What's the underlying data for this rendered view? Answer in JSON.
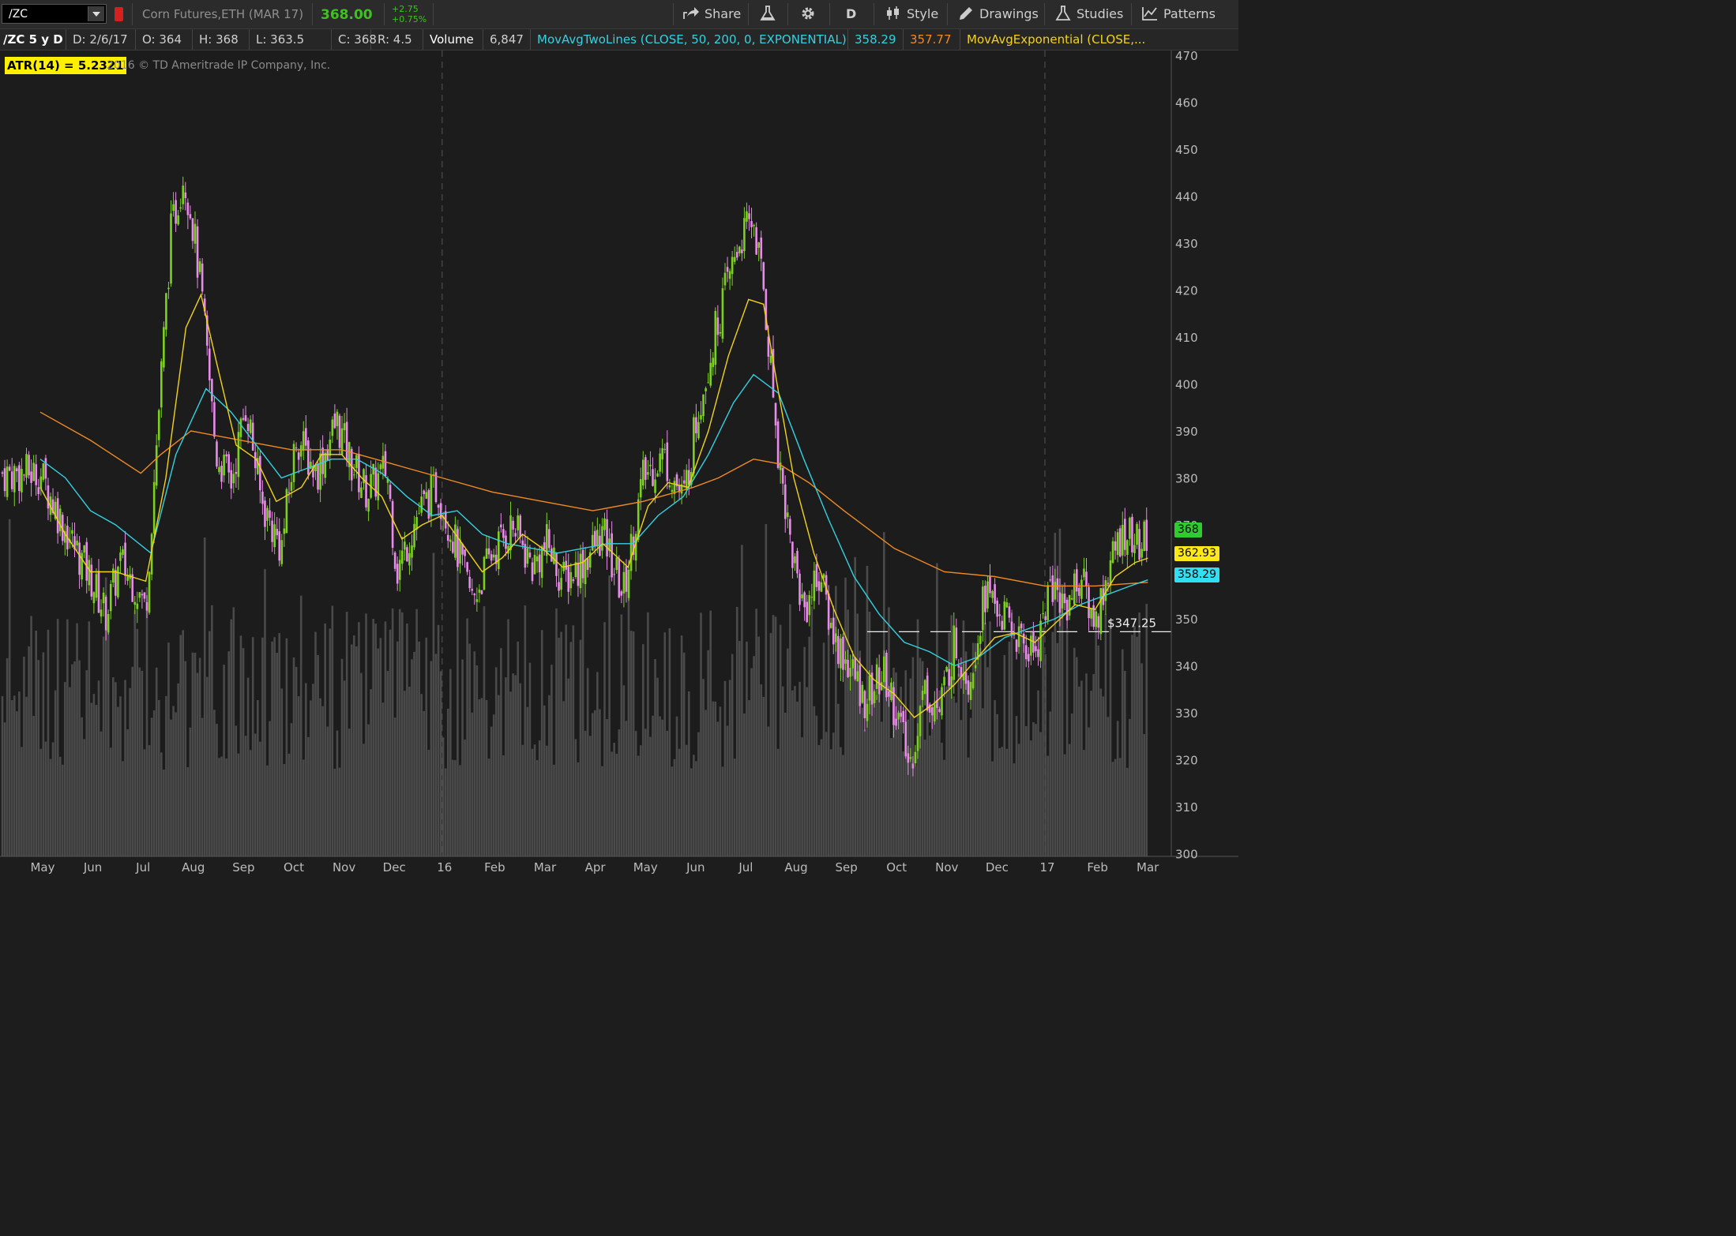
{
  "toolbar": {
    "symbol": "/ZC",
    "instrument": "Corn Futures,ETH (MAR 17)",
    "last": "368.00",
    "change": "+2.75",
    "change_pct": "+0.75%",
    "timeframe": "D",
    "buttons": {
      "share": "Share",
      "style": "Style",
      "drawings": "Drawings",
      "studies": "Studies",
      "patterns": "Patterns"
    }
  },
  "infobar": {
    "title": "/ZC 5 y D",
    "date": "D: 2/6/17",
    "open": "O: 364",
    "high": "H: 368",
    "low": "L: 363.5",
    "close": "C: 368",
    "range": "R: 4.5",
    "volume_label": "Volume",
    "volume_value": "6,847",
    "study1_label": "MovAvgTwoLines (CLOSE, 50, 200, 0, EXPONENTIAL)",
    "study1_v1": "358.29",
    "study1_v2": "357.77",
    "study2_label": "MovAvgExponential (CLOSE,..."
  },
  "overlay": {
    "atr": "ATR(14) = 5.2321",
    "copyright": "2016 © TD Ameritrade IP Company, Inc."
  },
  "colors": {
    "up": "#7cd11f",
    "down": "#e98ce9",
    "ema50": "#35d1e0",
    "ema200": "#f08a24",
    "ema_short": "#f2d31a",
    "volume": "#4a4a4a"
  },
  "chart_data": {
    "type": "candlestick",
    "ylim": [
      300,
      470
    ],
    "yticks": [
      300,
      310,
      320,
      330,
      340,
      350,
      360,
      370,
      380,
      390,
      400,
      410,
      420,
      430,
      440,
      450,
      460,
      470
    ],
    "xticks": [
      "May",
      "Jun",
      "Jul",
      "Aug",
      "Sep",
      "Oct",
      "Nov",
      "Dec",
      "16",
      "Feb",
      "Mar",
      "Apr",
      "May",
      "Jun",
      "Jul",
      "Aug",
      "Sep",
      "Oct",
      "Nov",
      "Dec",
      "17",
      "Feb",
      "Mar"
    ],
    "close_path": [
      [
        0,
        381
      ],
      [
        0.5,
        369
      ],
      [
        1,
        359
      ],
      [
        1.3,
        351
      ],
      [
        1.6,
        362
      ],
      [
        1.9,
        357
      ],
      [
        2.1,
        352
      ],
      [
        2.3,
        385
      ],
      [
        2.6,
        432
      ],
      [
        2.85,
        445
      ],
      [
        3.0,
        437
      ],
      [
        3.2,
        420
      ],
      [
        3.5,
        385
      ],
      [
        3.8,
        379
      ],
      [
        4.1,
        396
      ],
      [
        4.4,
        375
      ],
      [
        4.8,
        365
      ],
      [
        5.1,
        389
      ],
      [
        5.5,
        381
      ],
      [
        5.9,
        392
      ],
      [
        6.2,
        383
      ],
      [
        6.5,
        377
      ],
      [
        6.9,
        382
      ],
      [
        7.1,
        360
      ],
      [
        7.5,
        372
      ],
      [
        7.9,
        378
      ],
      [
        8.2,
        368
      ],
      [
        8.6,
        354
      ],
      [
        9.0,
        364
      ],
      [
        9.4,
        370
      ],
      [
        9.8,
        361
      ],
      [
        10.1,
        366
      ],
      [
        10.4,
        358
      ],
      [
        10.8,
        362
      ],
      [
        11.2,
        368
      ],
      [
        11.6,
        355
      ],
      [
        12.0,
        380
      ],
      [
        12.4,
        385
      ],
      [
        12.8,
        375
      ],
      [
        13.1,
        395
      ],
      [
        13.5,
        414
      ],
      [
        13.9,
        430
      ],
      [
        14.2,
        435
      ],
      [
        14.4,
        420
      ],
      [
        14.7,
        385
      ],
      [
        14.95,
        365
      ],
      [
        15.2,
        352
      ],
      [
        15.5,
        360
      ],
      [
        15.8,
        346
      ],
      [
        16.1,
        340
      ],
      [
        16.4,
        333
      ],
      [
        16.8,
        338
      ],
      [
        17.1,
        328
      ],
      [
        17.3,
        318
      ],
      [
        17.6,
        335
      ],
      [
        17.9,
        330
      ],
      [
        18.2,
        345
      ],
      [
        18.5,
        337
      ],
      [
        18.8,
        356
      ],
      [
        19.2,
        350
      ],
      [
        19.5,
        345
      ],
      [
        19.8,
        343
      ],
      [
        20.1,
        357
      ],
      [
        20.4,
        353
      ],
      [
        20.7,
        359
      ],
      [
        21.0,
        349
      ],
      [
        21.3,
        362
      ],
      [
        21.6,
        369
      ],
      [
        21.9,
        365
      ],
      [
        22.05,
        368
      ]
    ],
    "ema200": [
      [
        0,
        394
      ],
      [
        1,
        388
      ],
      [
        2,
        381
      ],
      [
        2.4,
        385
      ],
      [
        3,
        390
      ],
      [
        4,
        388
      ],
      [
        5,
        386
      ],
      [
        6,
        386
      ],
      [
        7,
        383
      ],
      [
        8,
        380
      ],
      [
        9,
        377
      ],
      [
        10,
        375
      ],
      [
        11,
        373
      ],
      [
        12,
        375
      ],
      [
        13,
        378
      ],
      [
        13.5,
        380
      ],
      [
        14.2,
        384
      ],
      [
        14.7,
        383
      ],
      [
        15.3,
        379
      ],
      [
        16,
        373
      ],
      [
        17,
        365
      ],
      [
        18,
        360
      ],
      [
        19,
        359
      ],
      [
        20,
        357
      ],
      [
        21,
        357
      ],
      [
        22.05,
        357.77
      ]
    ],
    "ema50": [
      [
        0,
        384
      ],
      [
        0.5,
        380
      ],
      [
        1,
        373
      ],
      [
        1.5,
        370
      ],
      [
        2.2,
        364
      ],
      [
        2.7,
        385
      ],
      [
        3.3,
        399
      ],
      [
        3.8,
        394
      ],
      [
        4.3,
        387
      ],
      [
        4.8,
        380
      ],
      [
        5.3,
        382
      ],
      [
        5.8,
        384
      ],
      [
        6.3,
        384
      ],
      [
        6.8,
        381
      ],
      [
        7.3,
        376
      ],
      [
        7.8,
        372
      ],
      [
        8.3,
        373
      ],
      [
        8.8,
        368
      ],
      [
        9.3,
        366
      ],
      [
        9.8,
        365
      ],
      [
        10.3,
        364
      ],
      [
        10.8,
        365
      ],
      [
        11.3,
        366
      ],
      [
        11.8,
        366
      ],
      [
        12.3,
        372
      ],
      [
        12.8,
        376
      ],
      [
        13.3,
        385
      ],
      [
        13.8,
        396
      ],
      [
        14.2,
        402
      ],
      [
        14.7,
        398
      ],
      [
        15.2,
        384
      ],
      [
        15.7,
        371
      ],
      [
        16.2,
        359
      ],
      [
        16.7,
        351
      ],
      [
        17.2,
        345
      ],
      [
        17.7,
        343
      ],
      [
        18.2,
        340
      ],
      [
        18.7,
        342
      ],
      [
        19.2,
        346
      ],
      [
        19.7,
        348
      ],
      [
        20.2,
        350
      ],
      [
        20.7,
        353
      ],
      [
        21.2,
        355
      ],
      [
        21.7,
        357
      ],
      [
        22.05,
        358.29
      ]
    ],
    "ema_short": [
      [
        0,
        378
      ],
      [
        0.5,
        368
      ],
      [
        1,
        360
      ],
      [
        1.5,
        360
      ],
      [
        2.1,
        358
      ],
      [
        2.5,
        380
      ],
      [
        2.9,
        412
      ],
      [
        3.2,
        419
      ],
      [
        3.5,
        405
      ],
      [
        3.9,
        387
      ],
      [
        4.3,
        384
      ],
      [
        4.7,
        375
      ],
      [
        5.2,
        378
      ],
      [
        5.6,
        385
      ],
      [
        6.0,
        385
      ],
      [
        6.4,
        380
      ],
      [
        6.8,
        376
      ],
      [
        7.2,
        367
      ],
      [
        7.6,
        370
      ],
      [
        8.0,
        372
      ],
      [
        8.4,
        366
      ],
      [
        8.8,
        360
      ],
      [
        9.2,
        363
      ],
      [
        9.6,
        368
      ],
      [
        10.0,
        365
      ],
      [
        10.4,
        361
      ],
      [
        10.8,
        362
      ],
      [
        11.2,
        366
      ],
      [
        11.7,
        361
      ],
      [
        12.1,
        374
      ],
      [
        12.5,
        379
      ],
      [
        12.9,
        378
      ],
      [
        13.3,
        390
      ],
      [
        13.7,
        406
      ],
      [
        14.1,
        418
      ],
      [
        14.4,
        417
      ],
      [
        14.7,
        398
      ],
      [
        15.0,
        380
      ],
      [
        15.4,
        364
      ],
      [
        15.8,
        352
      ],
      [
        16.2,
        342
      ],
      [
        16.6,
        337
      ],
      [
        17.0,
        334
      ],
      [
        17.4,
        329
      ],
      [
        17.8,
        332
      ],
      [
        18.2,
        336
      ],
      [
        18.6,
        341
      ],
      [
        19.0,
        346
      ],
      [
        19.4,
        347
      ],
      [
        19.8,
        345
      ],
      [
        20.2,
        349
      ],
      [
        20.6,
        353
      ],
      [
        21.0,
        352
      ],
      [
        21.4,
        359
      ],
      [
        21.8,
        362
      ],
      [
        22.05,
        362.93
      ]
    ],
    "horizontal_line": {
      "value": 347.25,
      "label": "$347.25"
    },
    "price_tags": [
      {
        "value": "368",
        "color": "#2ecc2e"
      },
      {
        "value": "362.93",
        "color": "#ffe81a"
      },
      {
        "value": "358.29",
        "color": "#2fe0f0"
      }
    ]
  }
}
